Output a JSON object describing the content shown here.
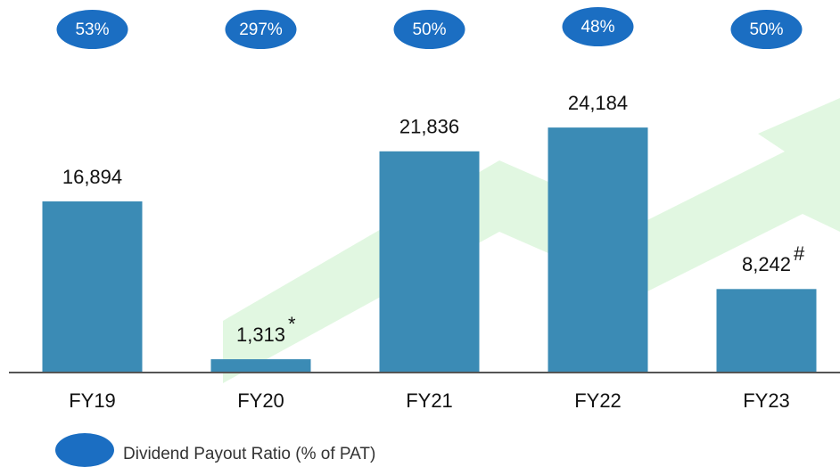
{
  "chart_data": {
    "type": "bar",
    "categories": [
      "FY19",
      "FY20",
      "FY21",
      "FY22",
      "FY23"
    ],
    "values": [
      16894,
      1313,
      21836,
      24184,
      8242
    ],
    "value_labels": [
      "16,894",
      "1,313",
      "21,836",
      "24,184",
      "8,242"
    ],
    "value_notes": [
      null,
      "*",
      null,
      null,
      "#"
    ],
    "color": "#3b8bb5",
    "ylim": [
      0,
      30000
    ],
    "payout_ratio": {
      "name": "Dividend Payout Ratio (% of PAT)",
      "values": [
        53,
        297,
        50,
        48,
        50
      ],
      "value_labels": [
        "53%",
        "297%",
        "50%",
        "48%",
        "50%"
      ],
      "color": "#1b6ec2"
    }
  }
}
